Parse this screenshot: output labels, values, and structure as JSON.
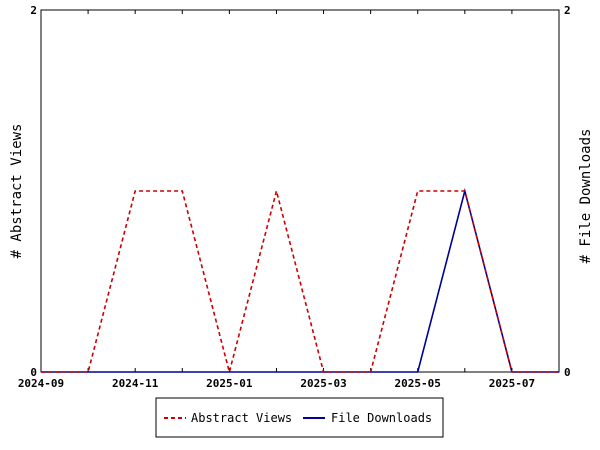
{
  "chart_data": {
    "type": "line",
    "x": [
      "2024-09",
      "2024-10",
      "2024-11",
      "2024-12",
      "2025-01",
      "2025-02",
      "2025-03",
      "2025-04",
      "2025-05",
      "2025-06",
      "2025-07",
      "2025-08"
    ],
    "x_tick_labels": [
      "2024-09",
      "2024-11",
      "2025-01",
      "2025-03",
      "2025-05",
      "2025-07"
    ],
    "series": [
      {
        "name": "Abstract Views",
        "axis": "left",
        "color": "#cc0000",
        "dash": "dashed",
        "values": [
          0,
          0,
          1,
          1,
          0,
          1,
          0,
          0,
          1,
          1,
          0,
          0
        ]
      },
      {
        "name": "File Downloads",
        "axis": "right",
        "color": "#000099",
        "dash": "solid",
        "values": [
          0,
          0,
          0,
          0,
          0,
          0,
          0,
          0,
          0,
          1,
          0,
          0
        ]
      }
    ],
    "ylabel_left": "# Abstract Views",
    "ylabel_right": "# File Downloads",
    "ylim_left": [
      0,
      2
    ],
    "ylim_right": [
      0,
      2
    ],
    "y_ticks_left": [
      "0",
      "2"
    ],
    "y_ticks_right": [
      "0",
      "2"
    ],
    "grid": false,
    "legend_position": "bottom-center"
  }
}
